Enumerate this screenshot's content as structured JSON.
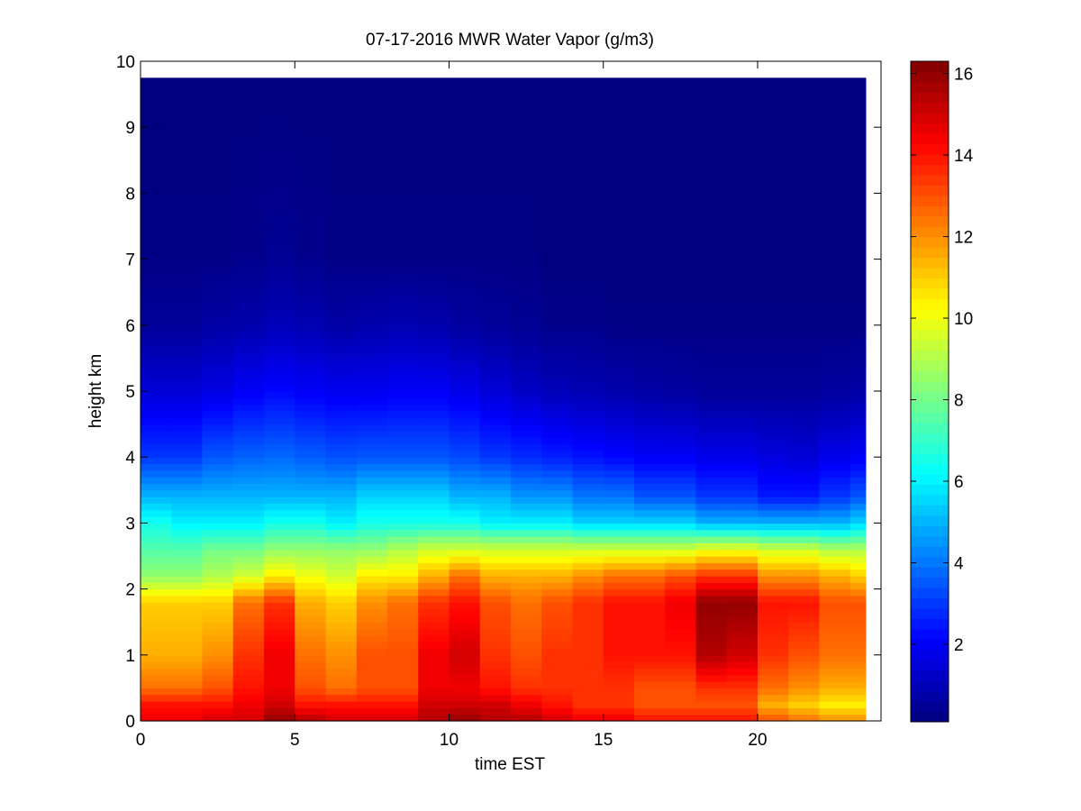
{
  "chart_data": {
    "type": "heatmap",
    "title": "07-17-2016 MWR Water Vapor (g/m3)",
    "xlabel": "time EST",
    "ylabel": "height km",
    "xlim": [
      0,
      24
    ],
    "ylim": [
      0,
      10
    ],
    "x_ticks": [
      0,
      5,
      10,
      15,
      20
    ],
    "y_ticks": [
      0,
      1,
      2,
      3,
      4,
      5,
      6,
      7,
      8,
      9,
      10
    ],
    "colorbar": {
      "range": [
        0.1,
        16.3
      ],
      "ticks": [
        2,
        4,
        6,
        8,
        10,
        12,
        14,
        16
      ],
      "colormap": "jet"
    },
    "grid": false,
    "time_start": 0,
    "time_step": 1,
    "time_columns": 24,
    "height_levels": [
      0.0,
      0.1,
      0.2,
      0.3,
      0.4,
      0.5,
      0.6,
      0.7,
      0.8,
      0.9,
      1.0,
      1.1,
      1.2,
      1.3,
      1.4,
      1.5,
      1.6,
      1.7,
      1.8,
      1.9,
      2.0,
      2.1,
      2.2,
      2.3,
      2.4,
      2.5,
      2.6,
      2.7,
      2.8,
      2.9,
      3.0,
      3.1,
      3.2,
      3.3,
      3.4,
      3.5,
      3.6,
      3.7,
      3.8,
      3.9,
      4.0,
      4.1,
      4.2,
      4.3,
      4.4,
      4.5,
      4.6,
      4.7,
      4.8,
      4.9,
      5.0,
      5.1,
      5.2,
      5.3,
      5.4,
      5.5,
      5.6,
      5.7,
      5.8,
      5.9,
      6.0,
      6.1,
      6.2,
      6.3,
      6.4,
      6.5,
      6.6,
      6.7,
      6.8,
      6.9,
      7.0,
      7.1,
      7.2,
      7.3,
      7.4,
      7.5,
      7.6,
      7.7,
      7.8,
      7.9,
      8.0,
      8.1,
      8.2,
      8.3,
      8.4,
      8.5,
      8.6,
      8.7,
      8.8,
      8.9,
      9.0,
      9.1,
      9.2,
      9.3,
      9.4,
      9.5,
      9.6,
      9.75
    ],
    "profile_anchors": {
      "heights": [
        0,
        0.25,
        0.5,
        1.0,
        1.8,
        2.2,
        2.6,
        3.0,
        3.4,
        4.0,
        5.0,
        6.0,
        7.0,
        9.75
      ],
      "columns": [
        [
          14.5,
          14.0,
          12.5,
          11.5,
          11.0,
          8.5,
          7.5,
          6.5,
          5.0,
          3.0,
          1.5,
          0.5,
          0.2,
          0.1
        ],
        [
          14.5,
          14.0,
          12.5,
          11.5,
          11.0,
          8.5,
          7.5,
          6.0,
          5.0,
          3.0,
          1.5,
          0.5,
          0.2,
          0.1
        ],
        [
          15.0,
          14.0,
          13.0,
          12.0,
          11.0,
          9.0,
          8.0,
          6.0,
          5.0,
          3.5,
          1.7,
          0.7,
          0.2,
          0.1
        ],
        [
          15.0,
          14.5,
          14.0,
          13.5,
          12.5,
          9.5,
          8.0,
          6.0,
          5.0,
          3.7,
          2.0,
          0.8,
          0.3,
          0.1
        ],
        [
          16.0,
          15.0,
          14.5,
          14.5,
          13.5,
          10.5,
          8.5,
          6.5,
          5.0,
          3.8,
          2.2,
          1.0,
          0.4,
          0.1
        ],
        [
          15.5,
          14.0,
          13.0,
          12.5,
          11.5,
          10.0,
          8.5,
          6.5,
          5.0,
          3.6,
          2.0,
          0.9,
          0.3,
          0.1
        ],
        [
          15.0,
          14.0,
          12.5,
          12.0,
          11.0,
          9.5,
          8.5,
          6.0,
          5.0,
          3.4,
          1.9,
          0.7,
          0.2,
          0.1
        ],
        [
          15.0,
          14.0,
          13.0,
          13.0,
          12.0,
          10.5,
          8.5,
          6.5,
          5.5,
          3.5,
          1.9,
          0.8,
          0.2,
          0.1
        ],
        [
          15.0,
          14.0,
          13.0,
          13.0,
          12.5,
          10.5,
          9.0,
          6.5,
          5.5,
          3.5,
          2.0,
          0.9,
          0.2,
          0.1
        ],
        [
          15.5,
          15.0,
          14.5,
          14.5,
          13.5,
          11.5,
          9.5,
          6.5,
          5.5,
          3.5,
          2.0,
          0.8,
          0.2,
          0.1
        ],
        [
          16.0,
          15.0,
          14.5,
          15.0,
          14.0,
          12.5,
          9.5,
          6.5,
          5.0,
          3.3,
          1.8,
          0.6,
          0.2,
          0.1
        ],
        [
          15.5,
          15.0,
          14.0,
          13.5,
          13.0,
          11.5,
          9.5,
          6.0,
          5.0,
          3.0,
          1.5,
          0.5,
          0.2,
          0.1
        ],
        [
          15.5,
          14.5,
          13.5,
          13.0,
          12.5,
          11.5,
          9.5,
          6.0,
          4.5,
          2.8,
          1.2,
          0.4,
          0.2,
          0.1
        ],
        [
          15.0,
          14.0,
          13.5,
          13.5,
          13.0,
          11.5,
          9.5,
          6.0,
          4.5,
          2.6,
          1.0,
          0.3,
          0.1,
          0.1
        ],
        [
          14.5,
          13.5,
          13.5,
          13.5,
          13.5,
          12.0,
          9.5,
          5.5,
          4.0,
          2.4,
          0.9,
          0.3,
          0.1,
          0.1
        ],
        [
          14.5,
          13.5,
          13.5,
          14.0,
          14.0,
          12.5,
          9.5,
          5.5,
          4.0,
          2.2,
          0.8,
          0.2,
          0.1,
          0.1
        ],
        [
          14.0,
          13.0,
          13.0,
          14.0,
          14.0,
          12.5,
          9.5,
          5.5,
          3.5,
          2.0,
          0.7,
          0.2,
          0.1,
          0.1
        ],
        [
          14.0,
          13.0,
          13.0,
          14.0,
          14.5,
          13.0,
          9.5,
          5.5,
          3.5,
          2.0,
          0.6,
          0.2,
          0.1,
          0.1
        ],
        [
          14.0,
          13.0,
          13.5,
          15.5,
          16.0,
          13.5,
          10.0,
          5.0,
          3.0,
          1.8,
          0.5,
          0.2,
          0.1,
          0.1
        ],
        [
          14.0,
          13.0,
          13.5,
          15.0,
          16.0,
          13.5,
          10.0,
          5.0,
          3.0,
          1.8,
          0.5,
          0.2,
          0.1,
          0.1
        ],
        [
          13.0,
          11.5,
          12.5,
          13.5,
          14.0,
          12.0,
          9.5,
          5.0,
          2.5,
          1.6,
          0.5,
          0.2,
          0.1,
          0.1
        ],
        [
          12.5,
          11.0,
          12.0,
          13.0,
          14.0,
          12.0,
          9.5,
          5.0,
          2.5,
          1.5,
          0.5,
          0.2,
          0.1,
          0.1
        ],
        [
          12.0,
          10.5,
          11.5,
          12.5,
          13.0,
          11.5,
          9.0,
          5.0,
          3.0,
          1.8,
          0.6,
          0.2,
          0.1,
          0.1
        ],
        [
          12.0,
          10.5,
          11.5,
          12.5,
          13.0,
          11.0,
          9.0,
          5.5,
          3.5,
          2.0,
          0.7,
          0.2,
          0.1,
          0.1
        ]
      ]
    }
  }
}
